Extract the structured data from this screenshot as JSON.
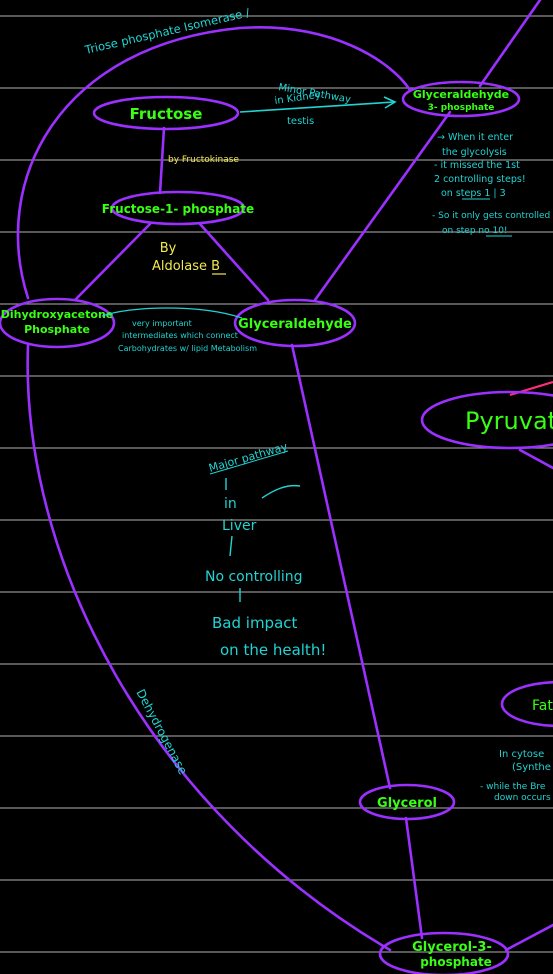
{
  "colors": {
    "background": "#000000",
    "ruled_line": "#8c8c8c",
    "node_stroke": "#9b30ff",
    "node_text": "#39ff14",
    "note_text": "#22d3d3",
    "enzyme_text": "#f2e94e",
    "pink_line": "#ff2d7a"
  },
  "nodes": {
    "fructose": "Fructose",
    "fructose_1_phosphate": "Fructose-1- phosphate",
    "dhap_line1": "Dihydroxyacetone",
    "dhap_line2": "Phosphate",
    "glyceraldehyde": "Glyceraldehyde",
    "g3p_line1": "Glyceraldehyde",
    "g3p_line2": "3- phosphate",
    "pyruvate": "Pyruvat",
    "glycerol": "Glycerol",
    "glycerol_3p_line1": "Glycerol-3-",
    "glycerol_3p_line2": "phosphate",
    "fat_partial": "Fat"
  },
  "labels": {
    "triose_isomerase": "Triose phosphate Isomerase /",
    "fructokinase": "by Fructokinase",
    "aldolase_line1": "By",
    "aldolase_line2": "Aldolase B",
    "minor_line1": "Minor Pathway",
    "minor_line2": "in Kidney",
    "minor_line3": "testis",
    "dehydrogenase": "Dehydrogenase"
  },
  "notes": {
    "glycolysis_note": [
      "→ When it enter",
      "the glycolysis",
      "- it missed the 1st",
      "2 controlling steps!",
      "on steps 1 | 3"
    ],
    "control_note": [
      "- So it only gets controlled",
      "on step no 10!"
    ],
    "intermediates_note": [
      "very important",
      "intermediates which connect",
      "Carbohydrates w/ lipid Metabolism"
    ],
    "major_pathway": "Major pathway",
    "in_liver_line1": "in",
    "in_liver_line2": "Liver",
    "no_controlling": "No controlling",
    "bad_impact_line1": "Bad impact",
    "bad_impact_line2": "on the health!",
    "cytosol_line1": "In cytose",
    "cytosol_line2": "(Synthe",
    "while_line1": "- while the Bre",
    "while_line2": "down occurs"
  }
}
